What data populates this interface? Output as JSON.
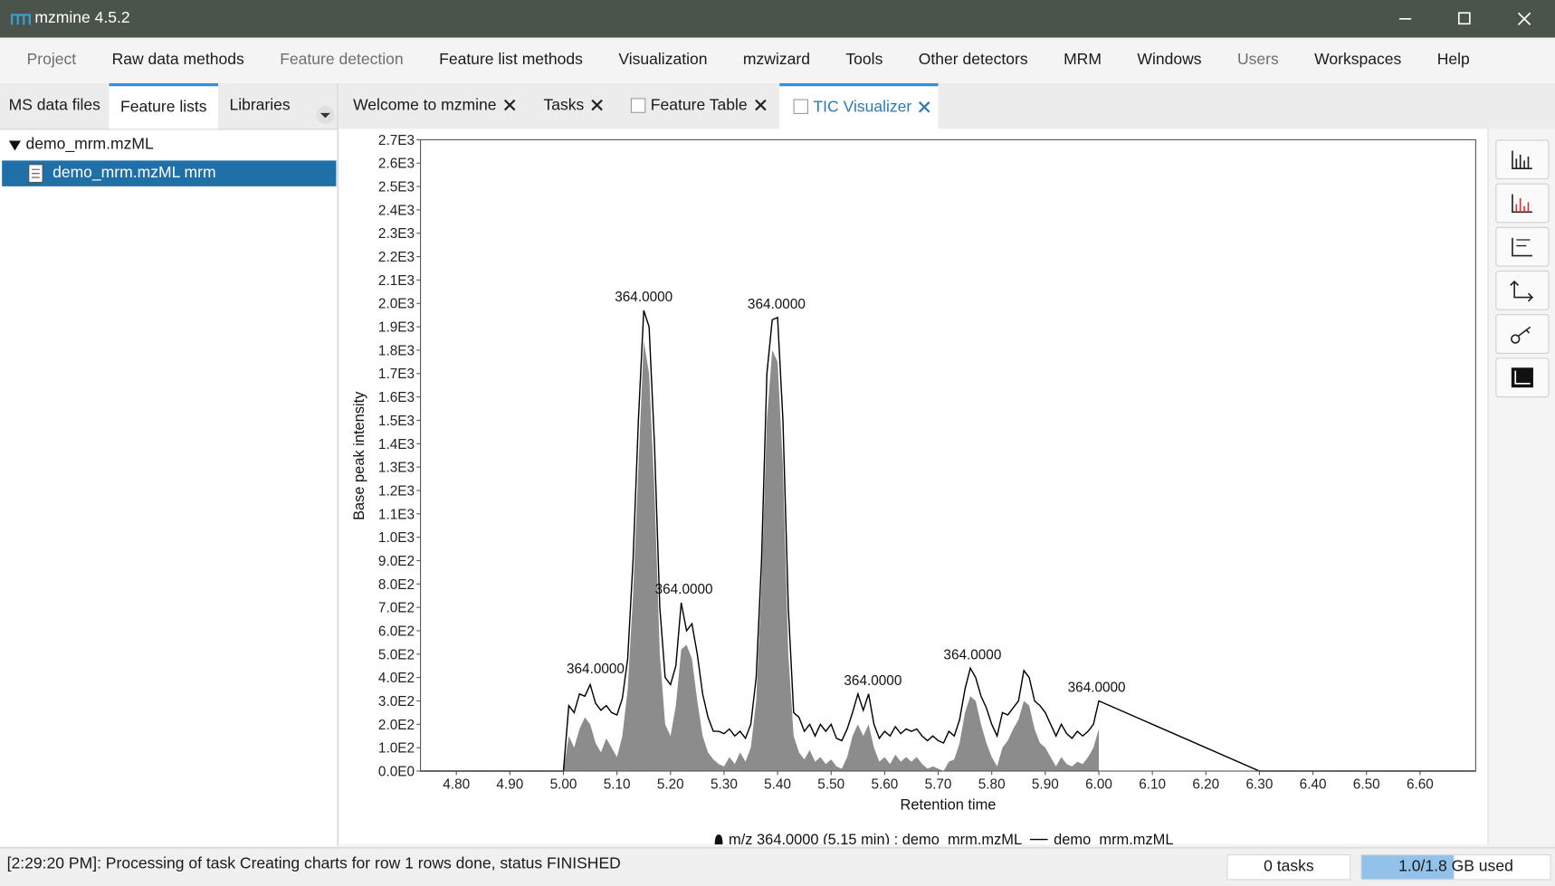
{
  "window": {
    "title": "mzmine 4.5.2"
  },
  "menu": [
    "Project",
    "Raw data methods",
    "Feature detection",
    "Feature list methods",
    "Visualization",
    "mzwizard",
    "Tools",
    "Other detectors",
    "MRM",
    "Windows",
    "Users",
    "Workspaces",
    "Help"
  ],
  "left_tabs": [
    "MS data files",
    "Feature lists",
    "Libraries"
  ],
  "tree": {
    "root": "demo_mrm.mzML",
    "child": "demo_mrm.mzML mrm"
  },
  "doc_tabs": [
    "Welcome to mzmine",
    "Tasks",
    "Feature Table",
    "TIC Visualizer"
  ],
  "chart_data": {
    "type": "line",
    "x_label": "Retention time",
    "y_label": "Base peak intensity",
    "xlim": [
      4.733,
      6.704
    ],
    "ylim": [
      0,
      2700
    ],
    "xticks": [
      {
        "value": 4.8,
        "label": "4.80"
      },
      {
        "value": 4.9,
        "label": "4.90"
      },
      {
        "value": 5.0,
        "label": "5.00"
      },
      {
        "value": 5.1,
        "label": "5.10"
      },
      {
        "value": 5.2,
        "label": "5.20"
      },
      {
        "value": 5.3,
        "label": "5.30"
      },
      {
        "value": 5.4,
        "label": "5.40"
      },
      {
        "value": 5.5,
        "label": "5.50"
      },
      {
        "value": 5.6,
        "label": "5.60"
      },
      {
        "value": 5.7,
        "label": "5.70"
      },
      {
        "value": 5.8,
        "label": "5.80"
      },
      {
        "value": 5.9,
        "label": "5.90"
      },
      {
        "value": 6.0,
        "label": "6.00"
      },
      {
        "value": 6.1,
        "label": "6.10"
      },
      {
        "value": 6.2,
        "label": "6.20"
      },
      {
        "value": 6.3,
        "label": "6.30"
      },
      {
        "value": 6.4,
        "label": "6.40"
      },
      {
        "value": 6.5,
        "label": "6.50"
      },
      {
        "value": 6.6,
        "label": "6.60"
      }
    ],
    "yticks": [
      {
        "value": 0,
        "label": "0.0E0"
      },
      {
        "value": 100,
        "label": "1.0E2"
      },
      {
        "value": 200,
        "label": "2.0E2"
      },
      {
        "value": 300,
        "label": "3.0E2"
      },
      {
        "value": 400,
        "label": "4.0E2"
      },
      {
        "value": 500,
        "label": "5.0E2"
      },
      {
        "value": 600,
        "label": "6.0E2"
      },
      {
        "value": 700,
        "label": "7.0E2"
      },
      {
        "value": 800,
        "label": "8.0E2"
      },
      {
        "value": 900,
        "label": "9.0E2"
      },
      {
        "value": 1000,
        "label": "1.0E3"
      },
      {
        "value": 1100,
        "label": "1.1E3"
      },
      {
        "value": 1200,
        "label": "1.2E3"
      },
      {
        "value": 1300,
        "label": "1.3E3"
      },
      {
        "value": 1400,
        "label": "1.4E3"
      },
      {
        "value": 1500,
        "label": "1.5E3"
      },
      {
        "value": 1600,
        "label": "1.6E3"
      },
      {
        "value": 1700,
        "label": "1.7E3"
      },
      {
        "value": 1800,
        "label": "1.8E3"
      },
      {
        "value": 1900,
        "label": "1.9E3"
      },
      {
        "value": 2000,
        "label": "2.0E3"
      },
      {
        "value": 2100,
        "label": "2.1E3"
      },
      {
        "value": 2200,
        "label": "2.2E3"
      },
      {
        "value": 2300,
        "label": "2.3E3"
      },
      {
        "value": 2400,
        "label": "2.4E3"
      },
      {
        "value": 2500,
        "label": "2.5E3"
      },
      {
        "value": 2600,
        "label": "2.6E3"
      },
      {
        "value": 2700,
        "label": "2.7E3"
      }
    ],
    "series": [
      {
        "name": "m/z 364.0000 (5.15 min) : demo_mrm.mzML",
        "style": "area",
        "color": "#8c8c8c",
        "x": [
          5.0,
          5.01,
          5.02,
          5.03,
          5.04,
          5.05,
          5.06,
          5.07,
          5.08,
          5.09,
          5.1,
          5.11,
          5.12,
          5.13,
          5.14,
          5.15,
          5.16,
          5.17,
          5.18,
          5.19,
          5.2,
          5.21,
          5.22,
          5.23,
          5.24,
          5.25,
          5.26,
          5.27,
          5.28,
          5.29,
          5.3,
          5.31,
          5.32,
          5.33,
          5.34,
          5.35,
          5.36,
          5.37,
          5.38,
          5.39,
          5.4,
          5.41,
          5.42,
          5.43,
          5.44,
          5.45,
          5.46,
          5.47,
          5.48,
          5.49,
          5.5,
          5.51,
          5.52,
          5.53,
          5.54,
          5.55,
          5.56,
          5.57,
          5.58,
          5.59,
          5.6,
          5.61,
          5.62,
          5.63,
          5.64,
          5.65,
          5.66,
          5.67,
          5.68,
          5.69,
          5.7,
          5.71,
          5.72,
          5.73,
          5.74,
          5.75,
          5.76,
          5.77,
          5.78,
          5.79,
          5.8,
          5.81,
          5.82,
          5.83,
          5.84,
          5.85,
          5.86,
          5.87,
          5.88,
          5.89,
          5.9,
          5.91,
          5.92,
          5.93,
          5.94,
          5.95,
          5.96,
          5.97,
          5.98,
          5.99,
          6.0
        ],
        "values": [
          0,
          150,
          100,
          180,
          230,
          200,
          120,
          80,
          140,
          100,
          60,
          150,
          350,
          750,
          1300,
          1840,
          1700,
          1200,
          500,
          200,
          150,
          280,
          520,
          540,
          480,
          300,
          150,
          80,
          50,
          30,
          20,
          60,
          30,
          80,
          40,
          100,
          300,
          800,
          1500,
          1800,
          1750,
          1300,
          500,
          150,
          80,
          50,
          90,
          40,
          60,
          30,
          50,
          20,
          10,
          60,
          150,
          200,
          150,
          200,
          100,
          40,
          60,
          30,
          70,
          40,
          60,
          40,
          60,
          30,
          10,
          20,
          10,
          0,
          40,
          50,
          120,
          250,
          320,
          300,
          200,
          120,
          60,
          20,
          100,
          130,
          180,
          220,
          300,
          280,
          180,
          120,
          100,
          60,
          20,
          60,
          30,
          20,
          40,
          30,
          60,
          100,
          180
        ]
      },
      {
        "name": "demo_mrm.mzML",
        "style": "line",
        "color": "#000000",
        "x": [
          4.733,
          5.0,
          5.01,
          5.02,
          5.03,
          5.04,
          5.05,
          5.06,
          5.07,
          5.08,
          5.09,
          5.1,
          5.11,
          5.12,
          5.13,
          5.14,
          5.15,
          5.16,
          5.17,
          5.18,
          5.19,
          5.2,
          5.21,
          5.22,
          5.23,
          5.24,
          5.25,
          5.26,
          5.27,
          5.28,
          5.29,
          5.3,
          5.31,
          5.32,
          5.33,
          5.34,
          5.35,
          5.36,
          5.37,
          5.38,
          5.39,
          5.4,
          5.41,
          5.42,
          5.43,
          5.44,
          5.45,
          5.46,
          5.47,
          5.48,
          5.49,
          5.5,
          5.51,
          5.52,
          5.53,
          5.54,
          5.55,
          5.56,
          5.57,
          5.58,
          5.59,
          5.6,
          5.61,
          5.62,
          5.63,
          5.64,
          5.65,
          5.66,
          5.67,
          5.68,
          5.69,
          5.7,
          5.71,
          5.72,
          5.73,
          5.74,
          5.75,
          5.76,
          5.77,
          5.78,
          5.79,
          5.8,
          5.81,
          5.82,
          5.83,
          5.84,
          5.85,
          5.86,
          5.87,
          5.88,
          5.89,
          5.9,
          5.91,
          5.92,
          5.93,
          5.94,
          5.95,
          5.96,
          5.97,
          5.98,
          5.99,
          6.0,
          6.3,
          6.704
        ],
        "values": [
          0,
          0,
          280,
          250,
          330,
          320,
          370,
          290,
          260,
          280,
          250,
          240,
          310,
          480,
          900,
          1500,
          1970,
          1900,
          1400,
          700,
          400,
          370,
          450,
          720,
          600,
          630,
          500,
          330,
          230,
          170,
          170,
          160,
          180,
          150,
          170,
          140,
          200,
          400,
          900,
          1700,
          1930,
          1940,
          1500,
          700,
          250,
          230,
          170,
          200,
          150,
          200,
          170,
          200,
          140,
          130,
          180,
          250,
          330,
          260,
          330,
          200,
          140,
          170,
          150,
          190,
          160,
          180,
          170,
          180,
          150,
          130,
          150,
          130,
          120,
          170,
          150,
          220,
          350,
          440,
          400,
          320,
          270,
          200,
          150,
          250,
          240,
          270,
          300,
          430,
          400,
          300,
          280,
          250,
          200,
          150,
          200,
          160,
          140,
          170,
          150,
          170,
          200,
          300,
          0,
          0
        ]
      }
    ],
    "annotations": [
      {
        "text": "364.0000",
        "x": 5.06,
        "y": 380
      },
      {
        "text": "364.0000",
        "x": 5.15,
        "y": 1970
      },
      {
        "text": "364.0000",
        "x": 5.225,
        "y": 720
      },
      {
        "text": "364.0000",
        "x": 5.398,
        "y": 1940
      },
      {
        "text": "364.0000",
        "x": 5.578,
        "y": 330
      },
      {
        "text": "364.0000",
        "x": 5.764,
        "y": 440
      },
      {
        "text": "364.0000",
        "x": 5.996,
        "y": 300
      }
    ]
  },
  "status": {
    "message": "[2:29:20 PM]: Processing of task Creating charts for row 1 rows done, status FINISHED",
    "tasks": "0 tasks",
    "memory": "1.0/1.8 GB used"
  }
}
